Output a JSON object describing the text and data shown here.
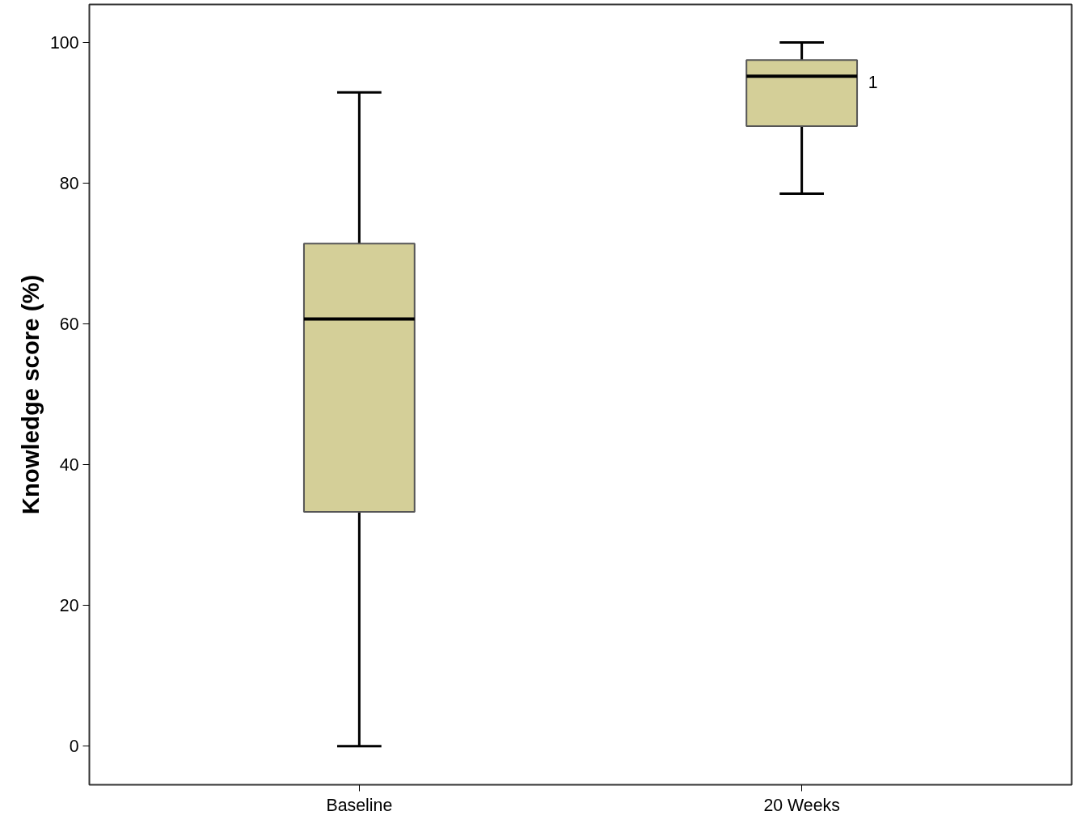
{
  "chart_data": {
    "type": "box",
    "ylabel": "Knowledge score (%)",
    "categories": [
      "Baseline",
      "20 Weeks"
    ],
    "boxes": [
      {
        "low": 0,
        "q1": 33.3,
        "median": 60.7,
        "q3": 71.4,
        "high": 92.9
      },
      {
        "low": 78.5,
        "q1": 88.1,
        "median": 95.2,
        "q3": 97.5,
        "high": 100
      }
    ],
    "color": "#d4cf98",
    "ylim": [
      -5.5,
      105.4
    ],
    "yticks": [
      0,
      20,
      40,
      60,
      80,
      100
    ],
    "grid": false,
    "annotations": [
      "1"
    ]
  }
}
